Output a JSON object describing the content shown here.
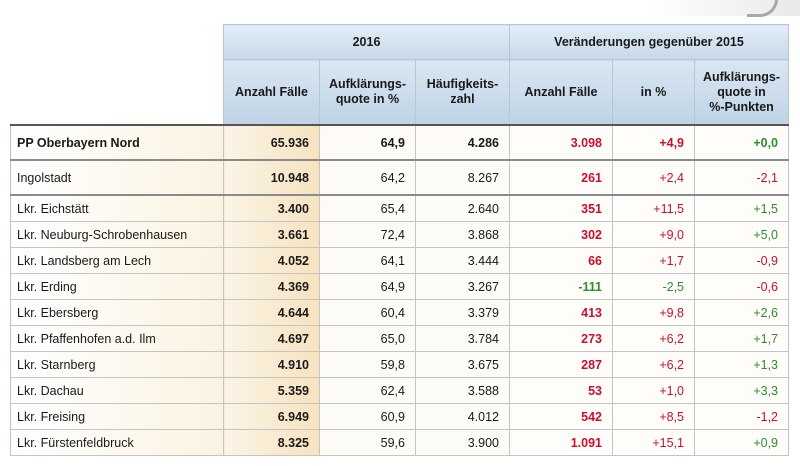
{
  "headers": {
    "group_2016": "2016",
    "group_change": "Veränderungen gegenüber 2015",
    "columns": [
      "Anzahl Fälle",
      "Aufklärungs-\nquote in %",
      "Häufigkeits-\nzahl",
      "Anzahl Fälle",
      "in %",
      "Aufklärungs-\nquote in\n%-Punkten"
    ]
  },
  "rows": [
    {
      "name": "PP Oberbayern Nord",
      "cases": "65.936",
      "rate": "64,9",
      "freq": "4.286",
      "d_cases": "3.098",
      "d_pct": "+4,9",
      "d_rate": "+0,0"
    },
    {
      "name": "Ingolstadt",
      "cases": "10.948",
      "rate": "64,2",
      "freq": "8.267",
      "d_cases": "261",
      "d_pct": "+2,4",
      "d_rate": "-2,1"
    },
    {
      "name": "Lkr. Eichstätt",
      "cases": "3.400",
      "rate": "65,4",
      "freq": "2.640",
      "d_cases": "351",
      "d_pct": "+11,5",
      "d_rate": "+1,5"
    },
    {
      "name": "Lkr. Neuburg-Schrobenhausen",
      "cases": "3.661",
      "rate": "72,4",
      "freq": "3.868",
      "d_cases": "302",
      "d_pct": "+9,0",
      "d_rate": "+5,0"
    },
    {
      "name": "Lkr. Landsberg am Lech",
      "cases": "4.052",
      "rate": "64,1",
      "freq": "3.444",
      "d_cases": "66",
      "d_pct": "+1,7",
      "d_rate": "-0,9"
    },
    {
      "name": "Lkr. Erding",
      "cases": "4.369",
      "rate": "64,9",
      "freq": "3.267",
      "d_cases": "-111",
      "d_pct": "-2,5",
      "d_rate": "-0,6"
    },
    {
      "name": "Lkr. Ebersberg",
      "cases": "4.644",
      "rate": "60,4",
      "freq": "3.379",
      "d_cases": "413",
      "d_pct": "+9,8",
      "d_rate": "+2,6"
    },
    {
      "name": "Lkr. Pfaffenhofen a.d. Ilm",
      "cases": "4.697",
      "rate": "65,0",
      "freq": "3.784",
      "d_cases": "273",
      "d_pct": "+6,2",
      "d_rate": "+1,7"
    },
    {
      "name": "Lkr. Starnberg",
      "cases": "4.910",
      "rate": "59,8",
      "freq": "3.675",
      "d_cases": "287",
      "d_pct": "+6,2",
      "d_rate": "+1,3"
    },
    {
      "name": "Lkr. Dachau",
      "cases": "5.359",
      "rate": "62,4",
      "freq": "3.588",
      "d_cases": "53",
      "d_pct": "+1,0",
      "d_rate": "+3,3"
    },
    {
      "name": "Lkr. Freising",
      "cases": "6.949",
      "rate": "60,9",
      "freq": "4.012",
      "d_cases": "542",
      "d_pct": "+8,5",
      "d_rate": "-1,2"
    },
    {
      "name": "Lkr. Fürstenfeldbruck",
      "cases": "8.325",
      "rate": "59,6",
      "freq": "3.900",
      "d_cases": "1.091",
      "d_pct": "+15,1",
      "d_rate": "+0,9"
    }
  ],
  "colors": {
    "increase": "#c8102e",
    "decrease_good": "#2e8b2e",
    "header_blue": "#c5d9ea",
    "body_beige": "#f6e3bf"
  }
}
